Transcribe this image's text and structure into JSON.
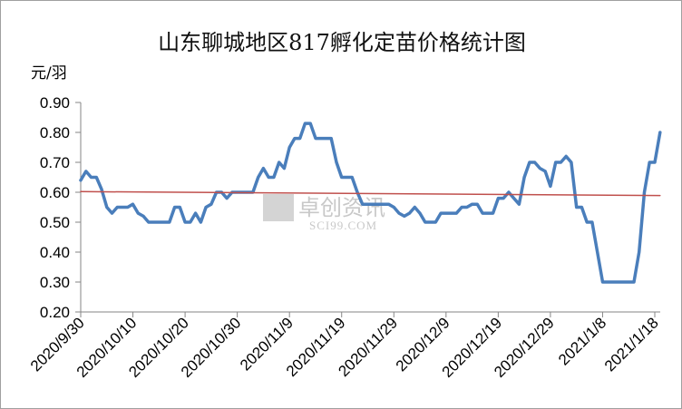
{
  "chart_data": {
    "type": "line",
    "title": "山东聊城地区817孵化定苗价格统计图",
    "ylabel": "元/羽",
    "xlabel": "",
    "ylim": [
      0.2,
      0.9
    ],
    "yticks": [
      "0.20",
      "0.30",
      "0.40",
      "0.50",
      "0.60",
      "0.70",
      "0.80",
      "0.90"
    ],
    "xtick_labels": [
      "2020/9/30",
      "2020/10/10",
      "2020/10/20",
      "2020/10/30",
      "2020/11/9",
      "2020/11/19",
      "2020/11/29",
      "2020/12/9",
      "2020/12/19",
      "2020/12/29",
      "2021/1/8",
      "2021/1/18"
    ],
    "x_start": "2020/9/30",
    "x_end": "2021/1/18",
    "grid": false,
    "legend": "none",
    "series": [
      {
        "color": "#4a7ebb",
        "points": [
          [
            "2020/9/30",
            0.64
          ],
          [
            "2020/10/1",
            0.67
          ],
          [
            "2020/10/2",
            0.65
          ],
          [
            "2020/10/3",
            0.65
          ],
          [
            "2020/10/4",
            0.61
          ],
          [
            "2020/10/5",
            0.55
          ],
          [
            "2020/10/6",
            0.53
          ],
          [
            "2020/10/7",
            0.55
          ],
          [
            "2020/10/8",
            0.55
          ],
          [
            "2020/10/9",
            0.55
          ],
          [
            "2020/10/10",
            0.56
          ],
          [
            "2020/10/11",
            0.53
          ],
          [
            "2020/10/12",
            0.52
          ],
          [
            "2020/10/13",
            0.5
          ],
          [
            "2020/10/14",
            0.5
          ],
          [
            "2020/10/15",
            0.5
          ],
          [
            "2020/10/16",
            0.5
          ],
          [
            "2020/10/17",
            0.5
          ],
          [
            "2020/10/18",
            0.55
          ],
          [
            "2020/10/19",
            0.55
          ],
          [
            "2020/10/20",
            0.5
          ],
          [
            "2020/10/21",
            0.5
          ],
          [
            "2020/10/22",
            0.53
          ],
          [
            "2020/10/23",
            0.5
          ],
          [
            "2020/10/24",
            0.55
          ],
          [
            "2020/10/25",
            0.56
          ],
          [
            "2020/10/26",
            0.6
          ],
          [
            "2020/10/27",
            0.6
          ],
          [
            "2020/10/28",
            0.58
          ],
          [
            "2020/10/29",
            0.6
          ],
          [
            "2020/10/30",
            0.6
          ],
          [
            "2020/10/31",
            0.6
          ],
          [
            "2020/11/1",
            0.6
          ],
          [
            "2020/11/2",
            0.6
          ],
          [
            "2020/11/3",
            0.65
          ],
          [
            "2020/11/4",
            0.68
          ],
          [
            "2020/11/5",
            0.65
          ],
          [
            "2020/11/6",
            0.65
          ],
          [
            "2020/11/7",
            0.7
          ],
          [
            "2020/11/8",
            0.68
          ],
          [
            "2020/11/9",
            0.75
          ],
          [
            "2020/11/10",
            0.78
          ],
          [
            "2020/11/11",
            0.78
          ],
          [
            "2020/11/12",
            0.83
          ],
          [
            "2020/11/13",
            0.83
          ],
          [
            "2020/11/14",
            0.78
          ],
          [
            "2020/11/15",
            0.78
          ],
          [
            "2020/11/16",
            0.78
          ],
          [
            "2020/11/17",
            0.78
          ],
          [
            "2020/11/18",
            0.7
          ],
          [
            "2020/11/19",
            0.65
          ],
          [
            "2020/11/20",
            0.65
          ],
          [
            "2020/11/21",
            0.65
          ],
          [
            "2020/11/22",
            0.6
          ],
          [
            "2020/11/23",
            0.56
          ],
          [
            "2020/11/24",
            0.56
          ],
          [
            "2020/11/25",
            0.56
          ],
          [
            "2020/11/26",
            0.56
          ],
          [
            "2020/11/27",
            0.56
          ],
          [
            "2020/11/28",
            0.56
          ],
          [
            "2020/11/29",
            0.55
          ],
          [
            "2020/11/30",
            0.53
          ],
          [
            "2020/12/1",
            0.52
          ],
          [
            "2020/12/2",
            0.53
          ],
          [
            "2020/12/3",
            0.55
          ],
          [
            "2020/12/4",
            0.53
          ],
          [
            "2020/12/5",
            0.5
          ],
          [
            "2020/12/6",
            0.5
          ],
          [
            "2020/12/7",
            0.5
          ],
          [
            "2020/12/8",
            0.53
          ],
          [
            "2020/12/9",
            0.53
          ],
          [
            "2020/12/10",
            0.53
          ],
          [
            "2020/12/11",
            0.53
          ],
          [
            "2020/12/12",
            0.55
          ],
          [
            "2020/12/13",
            0.55
          ],
          [
            "2020/12/14",
            0.56
          ],
          [
            "2020/12/15",
            0.56
          ],
          [
            "2020/12/16",
            0.53
          ],
          [
            "2020/12/17",
            0.53
          ],
          [
            "2020/12/18",
            0.53
          ],
          [
            "2020/12/19",
            0.58
          ],
          [
            "2020/12/20",
            0.58
          ],
          [
            "2020/12/21",
            0.6
          ],
          [
            "2020/12/22",
            0.58
          ],
          [
            "2020/12/23",
            0.56
          ],
          [
            "2020/12/24",
            0.65
          ],
          [
            "2020/12/25",
            0.7
          ],
          [
            "2020/12/26",
            0.7
          ],
          [
            "2020/12/27",
            0.68
          ],
          [
            "2020/12/28",
            0.67
          ],
          [
            "2020/12/29",
            0.62
          ],
          [
            "2020/12/30",
            0.7
          ],
          [
            "2020/12/31",
            0.7
          ],
          [
            "2021/1/1",
            0.72
          ],
          [
            "2021/1/2",
            0.7
          ],
          [
            "2021/1/3",
            0.55
          ],
          [
            "2021/1/4",
            0.55
          ],
          [
            "2021/1/5",
            0.5
          ],
          [
            "2021/1/6",
            0.5
          ],
          [
            "2021/1/7",
            0.4
          ],
          [
            "2021/1/8",
            0.3
          ],
          [
            "2021/1/9",
            0.3
          ],
          [
            "2021/1/10",
            0.3
          ],
          [
            "2021/1/11",
            0.3
          ],
          [
            "2021/1/12",
            0.3
          ],
          [
            "2021/1/13",
            0.3
          ],
          [
            "2021/1/14",
            0.3
          ],
          [
            "2021/1/15",
            0.4
          ],
          [
            "2021/1/16",
            0.6
          ],
          [
            "2021/1/17",
            0.7
          ],
          [
            "2021/1/18",
            0.7
          ],
          [
            "2021/1/19",
            0.8
          ]
        ]
      },
      {
        "color": "#c0504d",
        "points": [
          [
            "2020/9/30",
            0.602
          ],
          [
            "2021/1/19",
            0.589
          ]
        ]
      }
    ]
  },
  "watermark": {
    "text_cn": "卓创资讯",
    "text_en": "SCI99.COM"
  }
}
